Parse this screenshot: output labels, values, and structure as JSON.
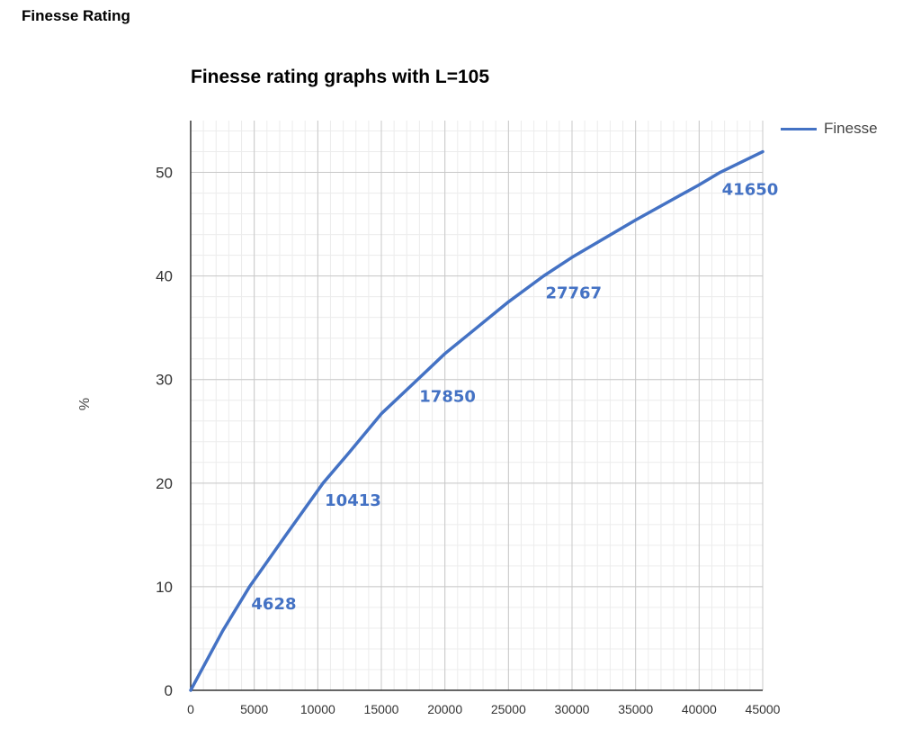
{
  "page": {
    "heading": "Finesse Rating"
  },
  "chart_data": {
    "type": "line",
    "title": "Finesse rating graphs with L=105",
    "xlabel": "",
    "ylabel": "%",
    "xlim": [
      0,
      45000
    ],
    "ylim": [
      0,
      55
    ],
    "x_ticks": [
      0,
      5000,
      10000,
      15000,
      20000,
      25000,
      30000,
      35000,
      40000,
      45000
    ],
    "y_ticks": [
      0,
      10,
      20,
      30,
      40,
      50
    ],
    "grid": true,
    "legend": {
      "placement": "top-right",
      "entries": [
        "Finesse"
      ]
    },
    "series": [
      {
        "name": "Finesse",
        "color": "#4472c4",
        "x": [
          0,
          2500,
          4628,
          7500,
          10413,
          12500,
          15000,
          17850,
          20000,
          22500,
          25000,
          27767,
          30000,
          35000,
          40000,
          41650,
          45000
        ],
        "y": [
          0,
          5.7,
          10,
          15,
          20,
          23,
          26.7,
          30,
          32.5,
          35,
          37.5,
          40,
          41.8,
          45.4,
          48.8,
          50,
          52
        ]
      }
    ],
    "annotations": [
      {
        "text": "4628",
        "x": 4628,
        "y": 10
      },
      {
        "text": "10413",
        "x": 10413,
        "y": 20
      },
      {
        "text": "17850",
        "x": 17850,
        "y": 30
      },
      {
        "text": "27767",
        "x": 27767,
        "y": 40
      },
      {
        "text": "41650",
        "x": 41650,
        "y": 50
      }
    ]
  }
}
